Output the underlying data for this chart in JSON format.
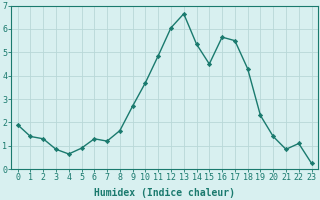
{
  "x": [
    0,
    1,
    2,
    3,
    4,
    5,
    6,
    7,
    8,
    9,
    10,
    11,
    12,
    13,
    14,
    15,
    16,
    17,
    18,
    19,
    20,
    21,
    22,
    23
  ],
  "y": [
    1.9,
    1.4,
    1.3,
    0.85,
    0.65,
    0.9,
    1.3,
    1.2,
    1.65,
    2.7,
    3.7,
    4.85,
    6.05,
    6.65,
    5.35,
    4.5,
    5.65,
    5.5,
    4.3,
    2.3,
    1.4,
    0.85,
    1.1,
    0.25
  ],
  "xlim": [
    -0.5,
    23.5
  ],
  "ylim": [
    0,
    7
  ],
  "yticks": [
    0,
    1,
    2,
    3,
    4,
    5,
    6,
    7
  ],
  "xticks": [
    0,
    1,
    2,
    3,
    4,
    5,
    6,
    7,
    8,
    9,
    10,
    11,
    12,
    13,
    14,
    15,
    16,
    17,
    18,
    19,
    20,
    21,
    22,
    23
  ],
  "xlabel": "Humidex (Indice chaleur)",
  "line_color": "#1a7a6e",
  "marker": "D",
  "marker_size": 2.2,
  "bg_color": "#d8f0f0",
  "grid_color": "#b8d8d8",
  "axis_color": "#1a7a6e",
  "tick_color": "#1a7a6e",
  "label_color": "#1a7a6e",
  "xlabel_fontsize": 7,
  "tick_fontsize": 6,
  "linewidth": 1.0
}
